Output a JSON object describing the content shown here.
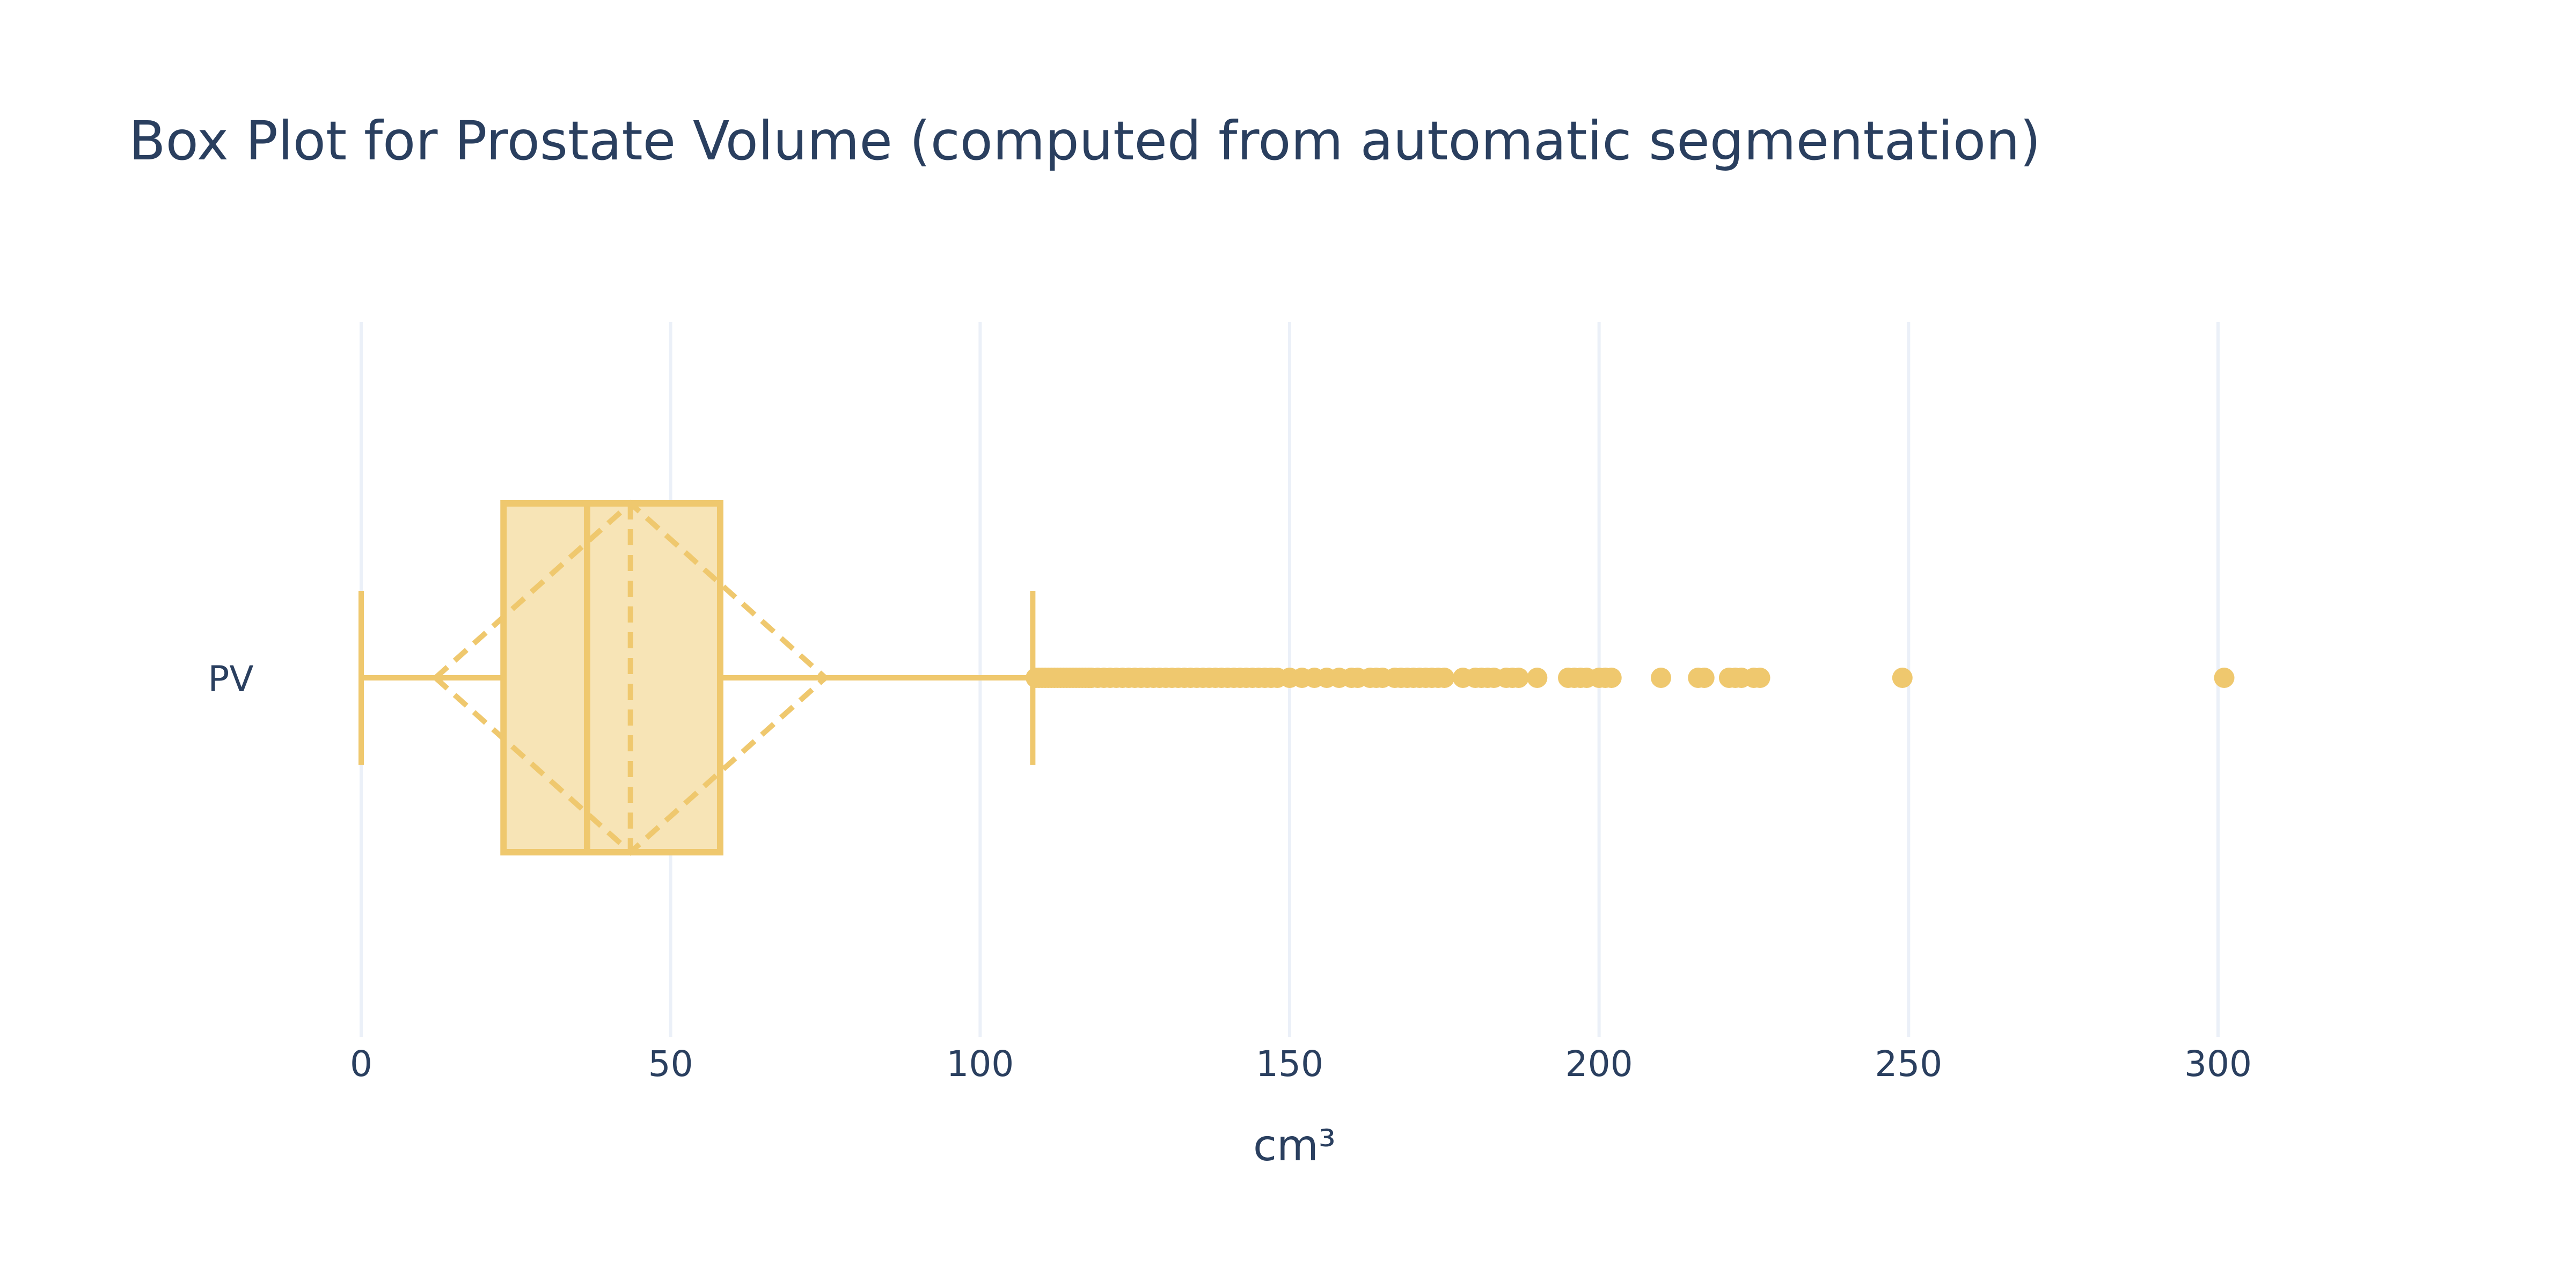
{
  "chart_data": {
    "type": "box",
    "title": "Box Plot for Prostate Volume (computed from automatic segmentation)",
    "xlabel": "cm³",
    "ylabel": "",
    "xlim": [
      0,
      302
    ],
    "x_ticks": [
      0,
      50,
      100,
      150,
      200,
      250,
      300
    ],
    "grid": true,
    "legend": "none",
    "color": "#efc86e",
    "fill_color": "#f7e4b6",
    "series": [
      {
        "name": "PV",
        "min": 0,
        "q1": 23,
        "median": 36.5,
        "q3": 58,
        "upper_fence": 108.5,
        "mean": 43.5,
        "sd": 31.5,
        "outliers": [
          109,
          109.5,
          110,
          110.5,
          111,
          111.5,
          112,
          112.5,
          113,
          113.5,
          114,
          114.5,
          115,
          115.5,
          116,
          116.5,
          117,
          117.5,
          118,
          119,
          120,
          121,
          122,
          123,
          124,
          125,
          126,
          127,
          128,
          129,
          130,
          131,
          132,
          133,
          134,
          135,
          136,
          137,
          138,
          139,
          140,
          141,
          142,
          143,
          144,
          145,
          146,
          147,
          148,
          150,
          152,
          154,
          156,
          158,
          160,
          161,
          163,
          164,
          165,
          167,
          168,
          169,
          170,
          171,
          172,
          173,
          174,
          175,
          178,
          180,
          181,
          182,
          183,
          185,
          186,
          187,
          190,
          195,
          196,
          197,
          198,
          200,
          201,
          202,
          210,
          216,
          217,
          221,
          222,
          223,
          225,
          226,
          249,
          301
        ]
      }
    ]
  }
}
